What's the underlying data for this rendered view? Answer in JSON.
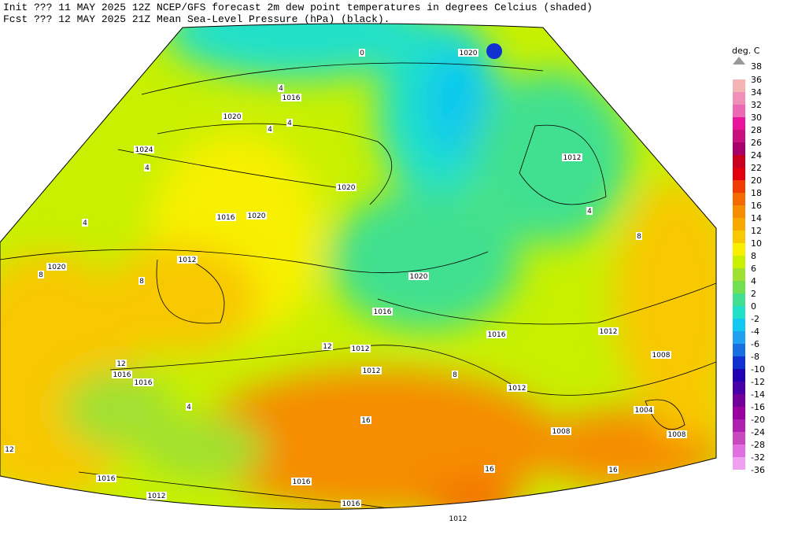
{
  "header": {
    "lines": [
      "Init  ??? 11 MAY 2025 12Z  NCEP/GFS forecast 2m dew point temperatures in degrees Celcius (shaded)",
      "Fcst  ??? 12 MAY 2025 21Z  Mean Sea-Level Pressure (hPa) (black)."
    ]
  },
  "colorbar": {
    "title": "deg. C",
    "labels": [
      38,
      36,
      34,
      32,
      30,
      28,
      26,
      24,
      22,
      20,
      18,
      16,
      14,
      12,
      10,
      8,
      6,
      4,
      2,
      0,
      -2,
      -4,
      -6,
      -8,
      -10,
      -12,
      -14,
      -16,
      -20,
      -24,
      -28,
      -32,
      -36
    ],
    "colors": [
      "#f4b4b4",
      "#f090b8",
      "#ec68b4",
      "#e8149a",
      "#c8107c",
      "#a8006a",
      "#c80020",
      "#e00010",
      "#f03c00",
      "#f46a00",
      "#f68c00",
      "#f8a800",
      "#f8c800",
      "#f8f000",
      "#c8f000",
      "#a0e030",
      "#70e050",
      "#40e090",
      "#20e0c8",
      "#10c8f0",
      "#20a0f0",
      "#1870e0",
      "#1030d0",
      "#2000b0",
      "#4800a8",
      "#700098",
      "#9800a0",
      "#b020b0",
      "#c848c0",
      "#e070e0",
      "#f0a0f0"
    ]
  },
  "map": {
    "labels": [
      "1020",
      "1016",
      "1020",
      "1024",
      "1012",
      "1020",
      "1016",
      "1020",
      "1012",
      "1020",
      "1020",
      "1016",
      "1016",
      "1012",
      "1008",
      "1012",
      "1012",
      "1016",
      "1016",
      "1012",
      "1004",
      "1008",
      "1008",
      "1016",
      "1016",
      "1012",
      "1016",
      "1012",
      "0",
      "4",
      "4",
      "4",
      "4",
      "4",
      "8",
      "8",
      "12",
      "12",
      "16",
      "16",
      "12",
      "4",
      "8",
      "4",
      "8",
      "16"
    ]
  }
}
